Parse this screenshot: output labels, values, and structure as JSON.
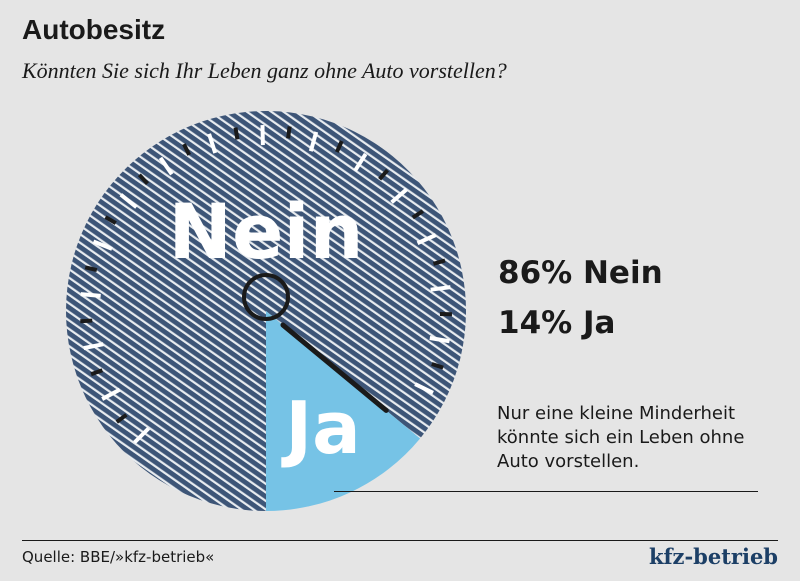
{
  "header": {
    "title": "Autobesitz",
    "subtitle": "Könnten Sie sich Ihr Leben ganz ohne Auto vorstellen?"
  },
  "chart_data": {
    "type": "pie",
    "title": "Autobesitz",
    "question": "Könnten Sie sich Ihr Leben ganz ohne Auto vorstellen?",
    "categories": [
      "Nein",
      "Ja"
    ],
    "values": [
      86,
      14
    ],
    "unit": "%",
    "slice_labels": [
      "Nein",
      "Ja"
    ],
    "legend": [
      "86% Nein",
      "14% Ja"
    ],
    "colors": {
      "nein_fill": "#3d5577",
      "nein_stripe": "#e8ecf0",
      "ja_fill": "#76c3e6",
      "needle": "#1a1a1a"
    }
  },
  "note": "Nur eine kleine Minderheit könnte sich ein Leben ohne Auto vorstellen.",
  "footer": {
    "source": "Quelle: BBE/»kfz-betrieb«",
    "brand": "kfz-betrieb"
  }
}
